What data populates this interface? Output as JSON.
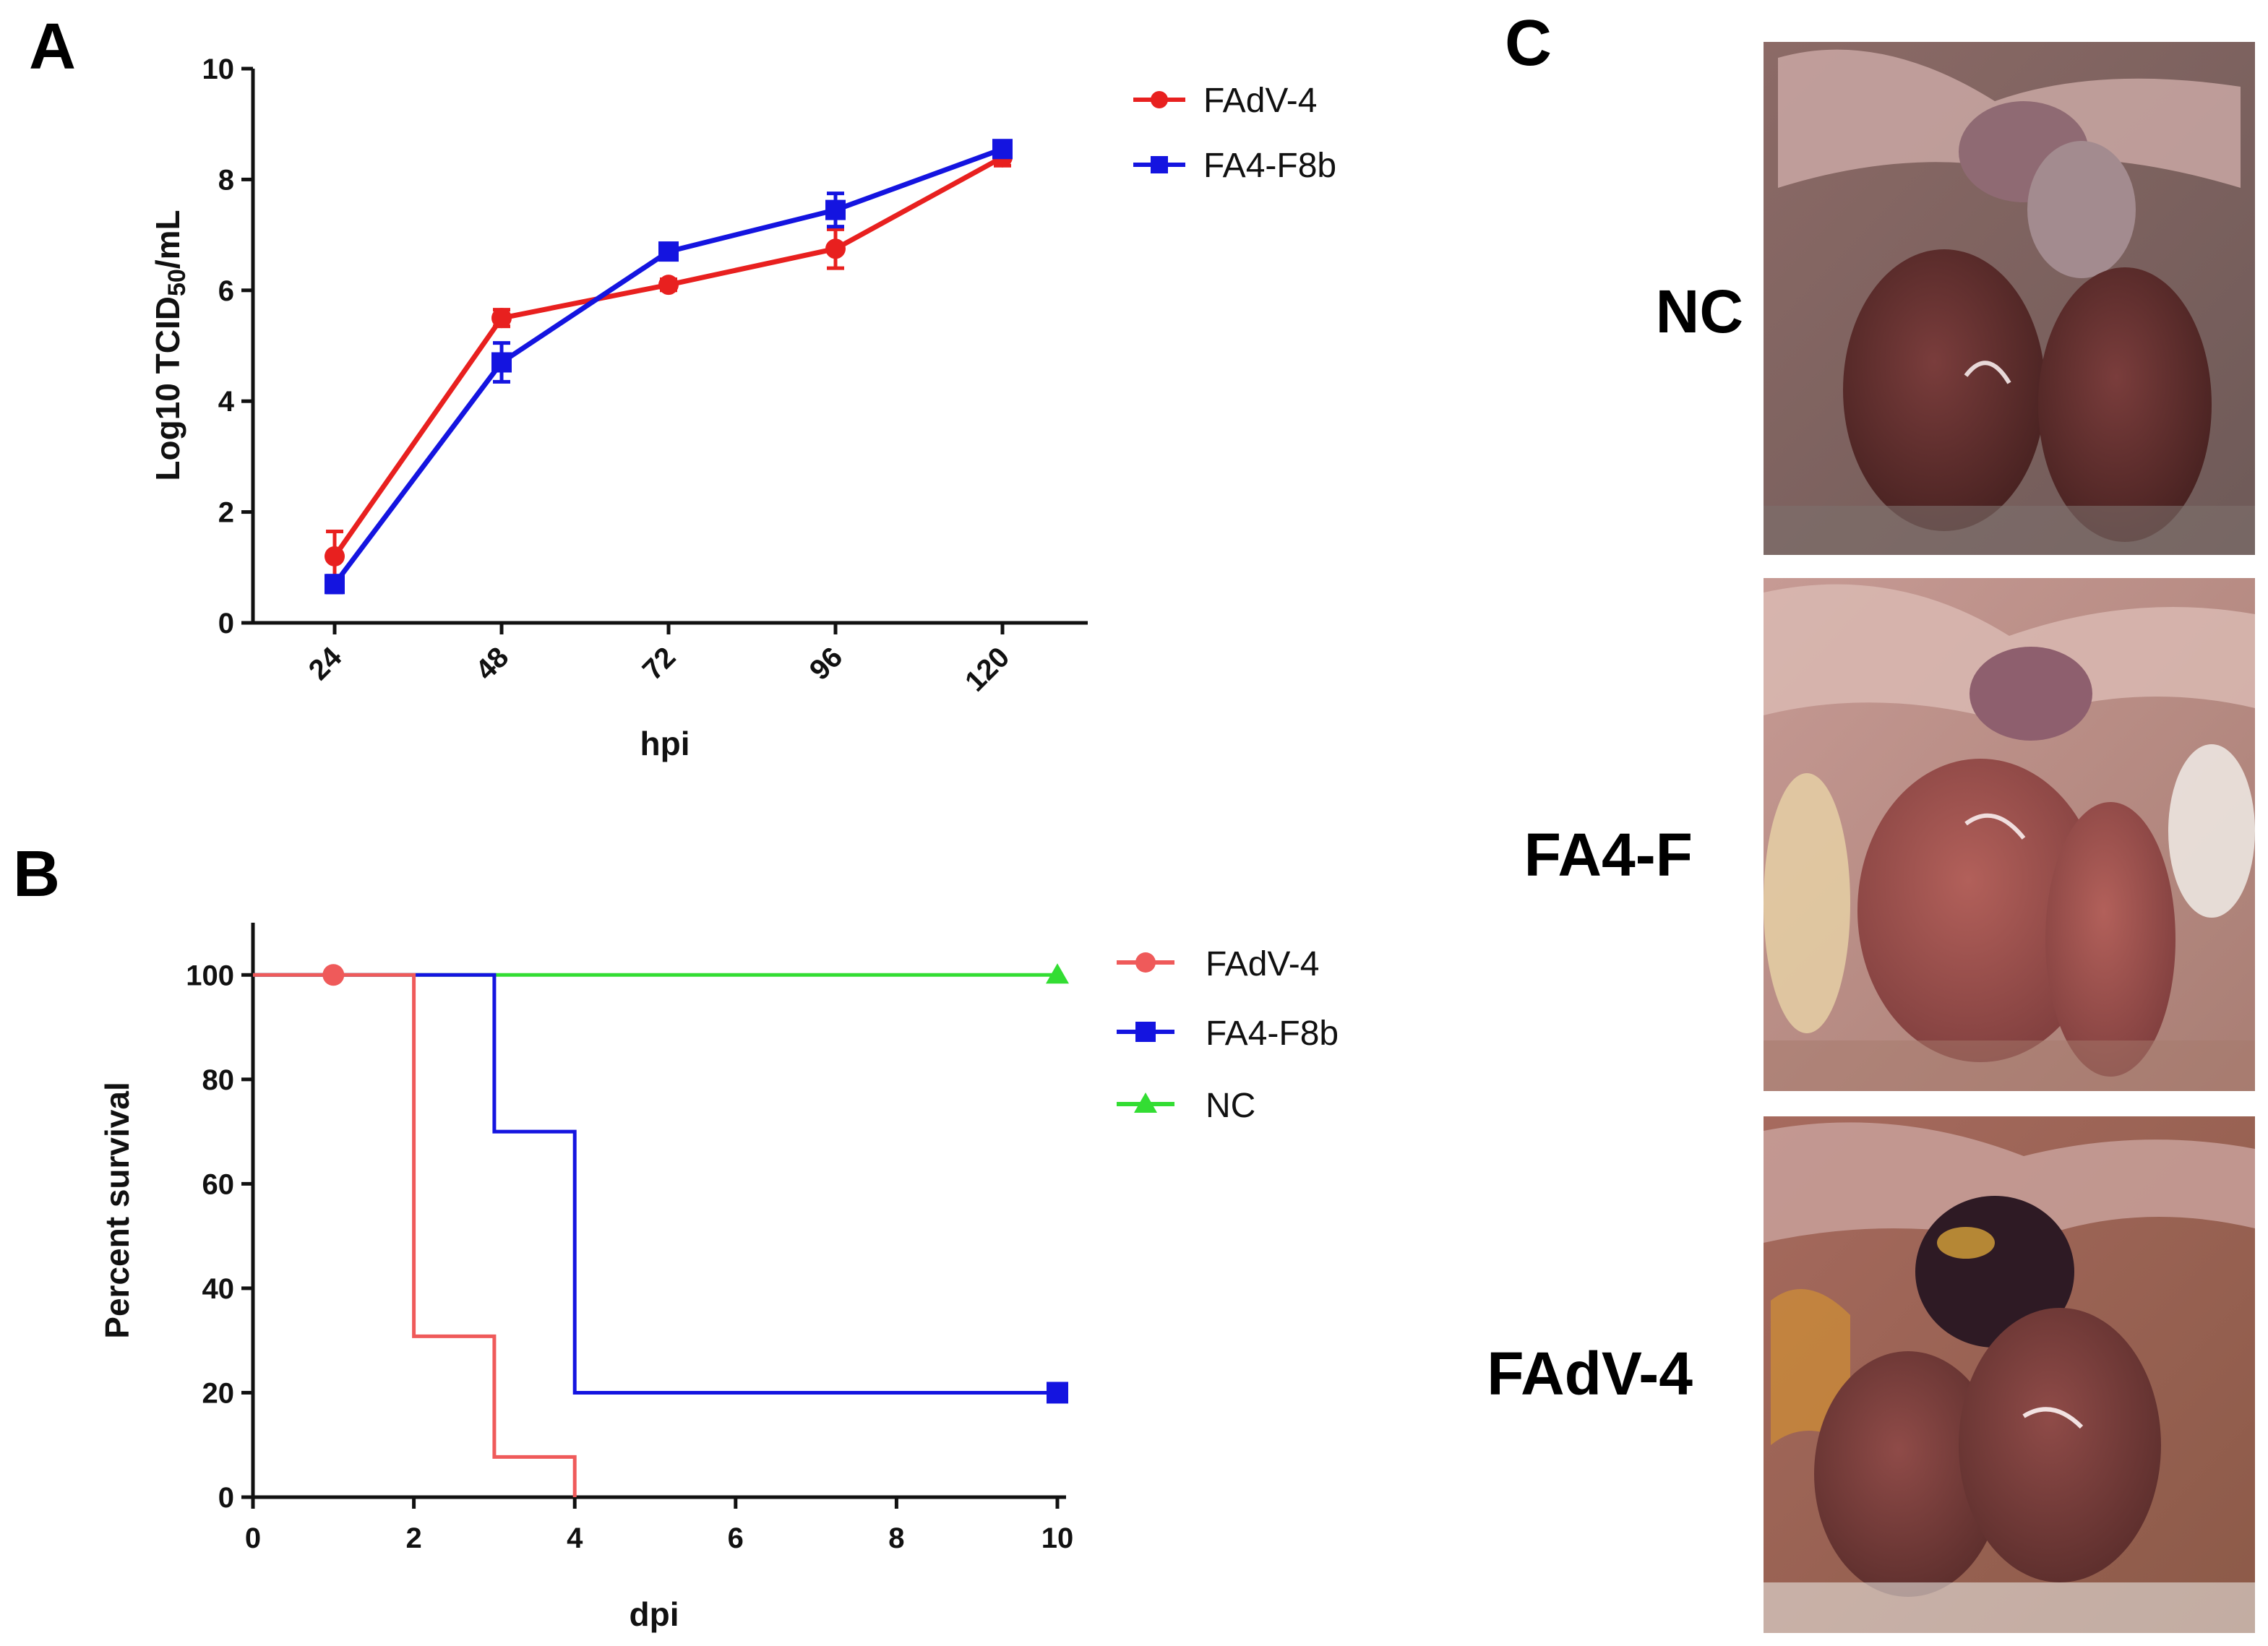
{
  "panel_labels": {
    "a": "A",
    "b": "B",
    "c": "C"
  },
  "chart_data": [
    {
      "panel": "A",
      "type": "line",
      "title": "",
      "xlabel": "hpi",
      "ylabel": "Log10 TCID50/mL",
      "ylabel_parts": {
        "main": "Log10 TCID",
        "sub": "50",
        "end": "/mL"
      },
      "categories": [
        "24",
        "48",
        "72",
        "96",
        "120"
      ],
      "ylim": [
        0,
        10
      ],
      "yticks": [
        0,
        2,
        4,
        6,
        8,
        10
      ],
      "grid": false,
      "legend_position": "top-right",
      "series": [
        {
          "name": "FAdV-4",
          "color": "#e8201f",
          "marker": "circle",
          "values": [
            1.2,
            5.5,
            6.1,
            6.75,
            8.4
          ],
          "errors": [
            0.45,
            0.15,
            0.1,
            0.35,
            0.15
          ]
        },
        {
          "name": "FA4-F8b",
          "color": "#1414e0",
          "marker": "square",
          "values": [
            0.7,
            4.7,
            6.7,
            7.45,
            8.55
          ],
          "errors": [
            0.15,
            0.35,
            0.1,
            0.3,
            0.12
          ]
        }
      ]
    },
    {
      "panel": "B",
      "type": "line",
      "title": "",
      "xlabel": "dpi",
      "ylabel": "Percent survival",
      "xlim": [
        0,
        10
      ],
      "ylim": [
        0,
        110
      ],
      "xticks": [
        0,
        2,
        4,
        6,
        8,
        10
      ],
      "yticks": [
        0,
        20,
        40,
        60,
        80,
        100
      ],
      "grid": false,
      "legend_position": "top-right",
      "series": [
        {
          "name": "FAdV-4",
          "color": "#ef5a5a",
          "marker": "circle",
          "marker_points": [
            [
              1,
              100
            ]
          ],
          "steps": [
            [
              0,
              100
            ],
            [
              2,
              100
            ],
            [
              2,
              30.8
            ],
            [
              3,
              30.8
            ],
            [
              3,
              7.7
            ],
            [
              4,
              7.7
            ],
            [
              4,
              0
            ]
          ]
        },
        {
          "name": "FA4-F8b",
          "color": "#1414e0",
          "marker": "square",
          "marker_points": [
            [
              10,
              20
            ]
          ],
          "steps": [
            [
              0,
              100
            ],
            [
              3,
              100
            ],
            [
              3,
              70
            ],
            [
              4,
              70
            ],
            [
              4,
              20
            ],
            [
              10,
              20
            ]
          ]
        },
        {
          "name": "NC",
          "color": "#33dd33",
          "marker": "triangle",
          "marker_points": [
            [
              10,
              100
            ]
          ],
          "steps": [
            [
              0,
              100
            ],
            [
              10,
              100
            ]
          ]
        }
      ]
    }
  ],
  "panel_c": {
    "photos": [
      {
        "label": "NC"
      },
      {
        "label": "FA4-F"
      },
      {
        "label": "FAdV-4"
      }
    ]
  }
}
